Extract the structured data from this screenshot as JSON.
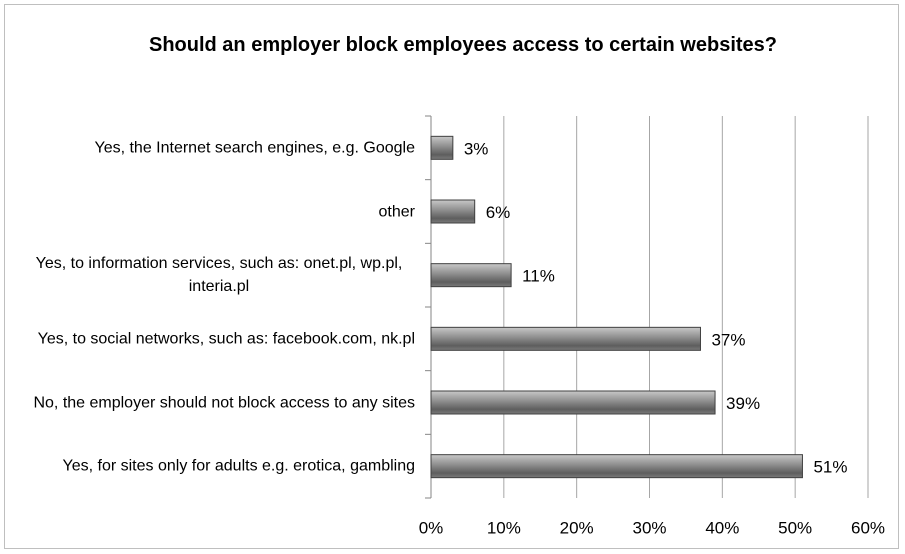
{
  "chart_data": {
    "type": "bar",
    "orientation": "horizontal",
    "title": "Should an employer block employees access to certain websites?",
    "categories": [
      "Yes, the Internet search engines, e.g. Google",
      "other",
      "Yes, to information services, such as: onet.pl, wp.pl, interia.pl",
      "Yes, to social networks, such as: facebook.com, nk.pl",
      "No, the employer should not block access to any sites",
      "Yes, for sites only for adults e.g. erotica, gambling"
    ],
    "values": [
      3,
      6,
      11,
      37,
      39,
      51
    ],
    "value_labels": [
      "3%",
      "6%",
      "11%",
      "37%",
      "39%",
      "51%"
    ],
    "color": "#808080",
    "xlim": [
      0,
      60
    ],
    "xticks": [
      {
        "value": 0,
        "label": "0%"
      },
      {
        "value": 10,
        "label": "10%"
      },
      {
        "value": 20,
        "label": "20%"
      },
      {
        "value": 30,
        "label": "30%"
      },
      {
        "value": 40,
        "label": "40%"
      },
      {
        "value": 50,
        "label": "50%"
      },
      {
        "value": 60,
        "label": "60%"
      }
    ],
    "grid": true
  }
}
